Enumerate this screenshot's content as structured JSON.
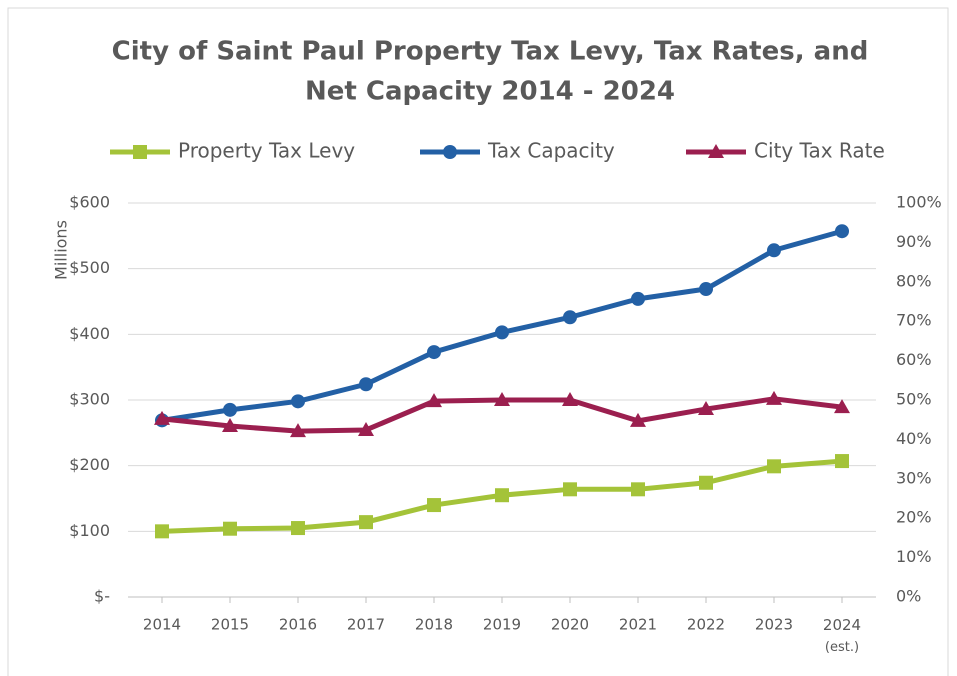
{
  "chart_data": {
    "type": "line",
    "title": [
      "City of Saint Paul Property Tax Levy, Tax Rates, and",
      "Net Capacity 2014 - 2024"
    ],
    "y_label": "Millions",
    "categories": [
      "2014",
      "2015",
      "2016",
      "2017",
      "2018",
      "2019",
      "2020",
      "2021",
      "2022",
      "2023",
      "2024 (est.)"
    ],
    "series": [
      {
        "name": "Property Tax Levy",
        "color": "#a4c339",
        "marker": "square",
        "values": [
          100,
          104,
          105,
          114,
          140,
          155,
          164,
          164,
          174,
          199,
          207
        ]
      },
      {
        "name": "Tax Capacity",
        "color": "#2360a5",
        "marker": "circle",
        "values": [
          269,
          285,
          298,
          324,
          373,
          403,
          426,
          454,
          469,
          528,
          557
        ]
      },
      {
        "name": "City Tax Rate",
        "color": "#9b1f4f",
        "marker": "triangle",
        "axis": "y2",
        "values": [
          45.2,
          43.4,
          42.1,
          42.4,
          49.7,
          50,
          50,
          44.7,
          47.7,
          50.3,
          48.2
        ]
      }
    ],
    "ylim": [
      0,
      600
    ],
    "yticks": [
      {
        "value": 0,
        "label": "$-"
      },
      {
        "value": 100,
        "label": "$100"
      },
      {
        "value": 200,
        "label": "$200"
      },
      {
        "value": 300,
        "label": "$300"
      },
      {
        "value": 400,
        "label": "$400"
      },
      {
        "value": 500,
        "label": "$500"
      },
      {
        "value": 600,
        "label": "$600"
      }
    ],
    "y2lim": [
      0,
      100
    ],
    "y2ticks": [
      {
        "value": 0,
        "label": "0%"
      },
      {
        "value": 10,
        "label": "10%"
      },
      {
        "value": 20,
        "label": "20%"
      },
      {
        "value": 30,
        "label": "30%"
      },
      {
        "value": 40,
        "label": "40%"
      },
      {
        "value": 50,
        "label": "50%"
      },
      {
        "value": 60,
        "label": "60%"
      },
      {
        "value": 70,
        "label": "70%"
      },
      {
        "value": 80,
        "label": "80%"
      },
      {
        "value": 90,
        "label": "90%"
      },
      {
        "value": 100,
        "label": "100%"
      }
    ],
    "grid": true,
    "legend": "top"
  }
}
